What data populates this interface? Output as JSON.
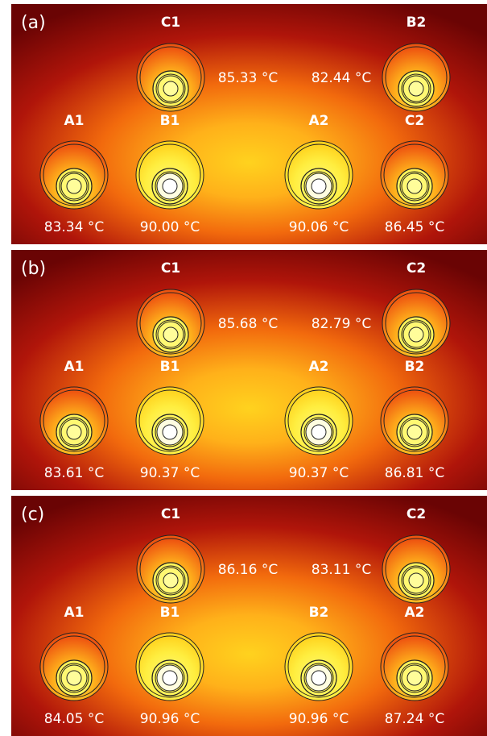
{
  "colors": {
    "hot": "#fff87a",
    "warm": "#ffd21e",
    "mid": "#f26a0d",
    "cool": "#b0150a",
    "cold": "#6a0404",
    "conductor": "#ffffff",
    "outline": "#222222"
  },
  "panels": [
    {
      "letter": "(a)",
      "cables": [
        {
          "id": "C1",
          "label": "C1",
          "row": "top",
          "slot": "left",
          "temperature": "85.33 °C"
        },
        {
          "id": "B2",
          "label": "B2",
          "row": "top",
          "slot": "right",
          "temperature": "82.44 °C"
        },
        {
          "id": "A1",
          "label": "A1",
          "row": "bottom",
          "slot": 0,
          "temperature": "83.34 °C"
        },
        {
          "id": "B1",
          "label": "B1",
          "row": "bottom",
          "slot": 1,
          "temperature": "90.00 °C"
        },
        {
          "id": "A2",
          "label": "A2",
          "row": "bottom",
          "slot": 2,
          "temperature": "90.06 °C"
        },
        {
          "id": "C2",
          "label": "C2",
          "row": "bottom",
          "slot": 3,
          "temperature": "86.45 °C"
        }
      ]
    },
    {
      "letter": "(b)",
      "cables": [
        {
          "id": "C1",
          "label": "C1",
          "row": "top",
          "slot": "left",
          "temperature": "85.68 °C"
        },
        {
          "id": "C2",
          "label": "C2",
          "row": "top",
          "slot": "right",
          "temperature": "82.79 °C"
        },
        {
          "id": "A1",
          "label": "A1",
          "row": "bottom",
          "slot": 0,
          "temperature": "83.61 °C"
        },
        {
          "id": "B1",
          "label": "B1",
          "row": "bottom",
          "slot": 1,
          "temperature": "90.37 °C"
        },
        {
          "id": "A2",
          "label": "A2",
          "row": "bottom",
          "slot": 2,
          "temperature": "90.37 °C"
        },
        {
          "id": "B2",
          "label": "B2",
          "row": "bottom",
          "slot": 3,
          "temperature": "86.81 °C"
        }
      ]
    },
    {
      "letter": "(c)",
      "cables": [
        {
          "id": "C1",
          "label": "C1",
          "row": "top",
          "slot": "left",
          "temperature": "86.16 °C"
        },
        {
          "id": "C2",
          "label": "C2",
          "row": "top",
          "slot": "right",
          "temperature": "83.11 °C"
        },
        {
          "id": "A1",
          "label": "A1",
          "row": "bottom",
          "slot": 0,
          "temperature": "84.05 °C"
        },
        {
          "id": "B1",
          "label": "B1",
          "row": "bottom",
          "slot": 1,
          "temperature": "90.96 °C"
        },
        {
          "id": "B2",
          "label": "B2",
          "row": "bottom",
          "slot": 2,
          "temperature": "90.96 °C"
        },
        {
          "id": "A2",
          "label": "A2",
          "row": "bottom",
          "slot": 3,
          "temperature": "87.24 °C"
        }
      ]
    }
  ]
}
